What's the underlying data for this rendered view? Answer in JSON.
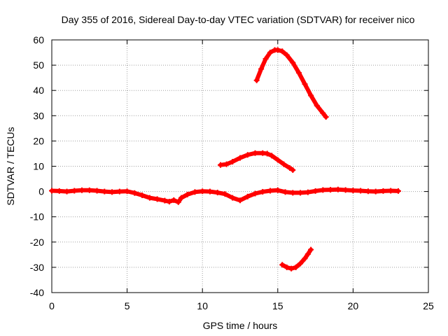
{
  "chart_data": {
    "type": "scatter",
    "title": "Day 355 of 2016, Sidereal Day-to-day VTEC variation (SDTVAR) for receiver nico",
    "xlabel": "GPS time / hours",
    "ylabel": "SDTVAR / TECUs",
    "xlim": [
      0,
      25
    ],
    "ylim": [
      -40,
      60
    ],
    "xticks": [
      0,
      5,
      10,
      15,
      20,
      25
    ],
    "yticks": [
      -40,
      -30,
      -20,
      -10,
      0,
      10,
      20,
      30,
      40,
      50,
      60
    ],
    "grid": true,
    "marker_color": "#ff0000",
    "series": [
      {
        "name": "main trace",
        "x": [
          0.0,
          0.5,
          1.0,
          1.5,
          2.0,
          2.5,
          3.0,
          3.5,
          4.0,
          4.5,
          5.0,
          5.5,
          6.0,
          6.5,
          7.0,
          7.5,
          7.8,
          8.1,
          8.4,
          8.6,
          9.0,
          9.5,
          10.0,
          10.5,
          11.0,
          11.5,
          12.0,
          12.5,
          13.0,
          13.5,
          14.0,
          14.5,
          15.0,
          15.5,
          16.0,
          16.5,
          17.0,
          17.5,
          18.0,
          18.5,
          19.0,
          19.5,
          20.0,
          20.5,
          21.0,
          21.5,
          22.0,
          22.5,
          23.0
        ],
        "y": [
          0.3,
          0.2,
          0.0,
          0.3,
          0.5,
          0.5,
          0.3,
          0.0,
          -0.2,
          0.0,
          0.1,
          -0.6,
          -1.5,
          -2.5,
          -3.0,
          -3.6,
          -4.0,
          -3.4,
          -4.2,
          -2.5,
          -1.2,
          -0.2,
          0.1,
          0.0,
          -0.4,
          -1.0,
          -2.5,
          -3.5,
          -2.0,
          -0.8,
          -0.1,
          0.3,
          0.5,
          -0.2,
          -0.5,
          -0.5,
          -0.3,
          0.2,
          0.6,
          0.7,
          0.8,
          0.6,
          0.4,
          0.3,
          0.1,
          0.0,
          0.2,
          0.3,
          0.2
        ]
      },
      {
        "name": "upper arc",
        "x": [
          13.6,
          13.9,
          14.2,
          14.5,
          14.8,
          15.0,
          15.3,
          15.6,
          16.0,
          16.4,
          16.8,
          17.2,
          17.6,
          18.0,
          18.2
        ],
        "y": [
          44.0,
          48.5,
          52.5,
          55.0,
          56.0,
          56.0,
          55.5,
          54.0,
          51.0,
          47.0,
          42.5,
          38.0,
          34.0,
          31.0,
          29.5
        ]
      },
      {
        "name": "middle arc",
        "x": [
          11.2,
          11.6,
          12.0,
          12.5,
          13.0,
          13.5,
          14.0,
          14.3,
          14.6,
          15.0,
          15.4,
          15.8,
          16.0
        ],
        "y": [
          10.5,
          10.8,
          11.8,
          13.3,
          14.5,
          15.2,
          15.2,
          15.0,
          14.2,
          12.5,
          10.8,
          9.3,
          8.5
        ]
      },
      {
        "name": "lower arc",
        "x": [
          15.3,
          15.6,
          15.9,
          16.2,
          16.5,
          16.8,
          17.0,
          17.2
        ],
        "y": [
          -29.0,
          -30.0,
          -30.5,
          -30.0,
          -28.5,
          -26.5,
          -24.8,
          -23.0
        ]
      }
    ]
  }
}
